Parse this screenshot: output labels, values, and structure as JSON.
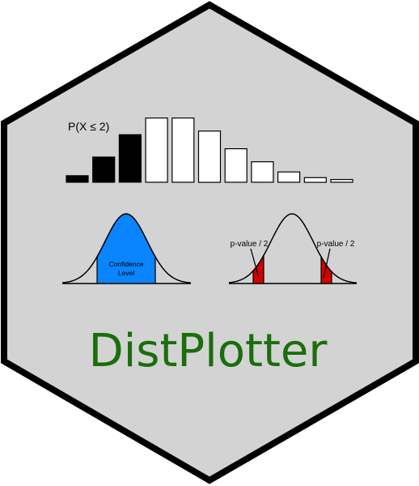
{
  "logo": {
    "title": "DistPlotter",
    "colors": {
      "background": "#d3d3d3",
      "border": "#000000",
      "title": "#1a6e0b",
      "filled_bar": "#000000",
      "empty_bar": "#ffffff",
      "confidence_fill": "#0a84ff",
      "tail_fill": "#d40000"
    }
  },
  "pmf_panel": {
    "annotation": "P(X ≤ 2)",
    "bar_values": [
      0.07,
      0.27,
      0.51,
      0.69,
      0.69,
      0.55,
      0.36,
      0.22,
      0.11,
      0.05,
      0.03
    ],
    "filled_count": 3
  },
  "confidence_panel": {
    "label_line1": "Confidence",
    "label_line2": "Level"
  },
  "pvalue_panel": {
    "left_label": "p-value / 2",
    "right_label": "p-value / 2"
  }
}
